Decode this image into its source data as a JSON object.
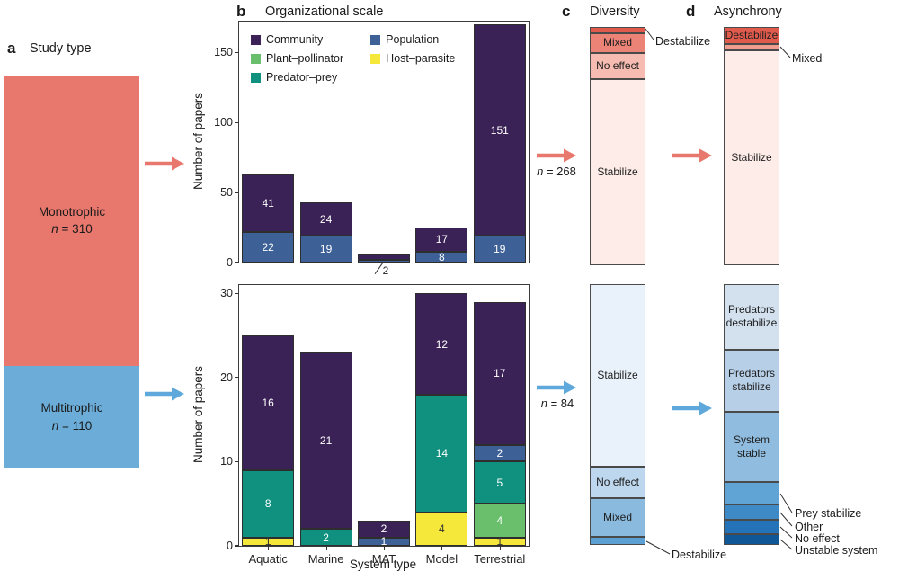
{
  "panel_a": {
    "letter": "a",
    "title": "Study type",
    "segments": [
      {
        "name": "Monotrophic",
        "n_sym": "n",
        "n_text": " = 310",
        "value": 310,
        "color": "#e8786d"
      },
      {
        "name": "Multitrophic",
        "n_sym": "n",
        "n_text": " = 110",
        "value": 110,
        "color": "#6badd8"
      }
    ]
  },
  "panel_b": {
    "letter": "b",
    "title": "Organizational scale",
    "ylabel": "Number of papers",
    "xlabel": "System type",
    "legend": [
      {
        "label": "Community",
        "color": "#3b2256"
      },
      {
        "label": "Plant–pollinator",
        "color": "#69bf6c"
      },
      {
        "label": "Predator–prey",
        "color": "#109180"
      },
      {
        "label": "Population",
        "color": "#3d6196"
      },
      {
        "label": "Host–parasite",
        "color": "#f5e83b"
      }
    ]
  },
  "panel_c": {
    "letter": "c",
    "title": "Diversity"
  },
  "panel_d": {
    "letter": "d",
    "title": "Asynchrony"
  },
  "arrows": {
    "red": "#e8786d",
    "blue": "#5ea8db"
  },
  "chart_data": [
    {
      "id": "organizational-scale-monotrophic",
      "type": "bar",
      "stacked": true,
      "categories": [
        "Aquatic",
        "Marine",
        "MAT",
        "Model",
        "Terrestrial"
      ],
      "ylabel": "Number of papers",
      "ylim": [
        0,
        172
      ],
      "yticks": [
        0,
        50,
        100,
        150
      ],
      "series": [
        {
          "name": "Population",
          "color": "#3d6196",
          "label_color": "#ffffff",
          "values": [
            22,
            19,
            2,
            8,
            19
          ],
          "labels": [
            "22",
            "19",
            "",
            "8",
            "19"
          ]
        },
        {
          "name": "Community",
          "color": "#3b2256",
          "label_color": "#ffffff",
          "values": [
            41,
            24,
            4,
            17,
            151
          ],
          "labels": [
            "41",
            "24",
            "",
            "17",
            "151"
          ]
        }
      ],
      "annotations": [
        {
          "text": "2",
          "category_index": 2,
          "position": "below-axis"
        }
      ]
    },
    {
      "id": "organizational-scale-multitrophic",
      "type": "bar",
      "stacked": true,
      "categories": [
        "Aquatic",
        "Marine",
        "MAT",
        "Model",
        "Terrestrial"
      ],
      "ylabel": "Number of papers",
      "xlabel": "System type",
      "ylim": [
        0,
        31
      ],
      "yticks": [
        0,
        10,
        20,
        30
      ],
      "show_x_tick_labels": true,
      "series": [
        {
          "name": "Host–parasite",
          "color": "#f5e83b",
          "label_color": "#333333",
          "values": [
            1,
            0,
            0,
            4,
            1
          ],
          "labels": [
            "1",
            "",
            "",
            "4",
            "1"
          ]
        },
        {
          "name": "Plant–pollinator",
          "color": "#69bf6c",
          "label_color": "#ffffff",
          "values": [
            0,
            0,
            0,
            0,
            4
          ],
          "labels": [
            "",
            "",
            "",
            "",
            "4"
          ]
        },
        {
          "name": "Predator–prey",
          "color": "#109180",
          "label_color": "#ffffff",
          "values": [
            8,
            2,
            0,
            14,
            5
          ],
          "labels": [
            "8",
            "2",
            "",
            "14",
            "5"
          ]
        },
        {
          "name": "Population",
          "color": "#3d6196",
          "label_color": "#ffffff",
          "values": [
            0,
            0,
            1,
            0,
            2
          ],
          "labels": [
            "",
            "",
            "1",
            "",
            "2"
          ]
        },
        {
          "name": "Community",
          "color": "#3b2256",
          "label_color": "#ffffff",
          "values": [
            16,
            21,
            2,
            12,
            17
          ],
          "labels": [
            "16",
            "21",
            "2",
            "12",
            "17"
          ]
        }
      ]
    },
    {
      "id": "diversity-monotrophic",
      "type": "stacked-column-percent",
      "n_sym": "n",
      "n_text": " = 268",
      "segments": [
        {
          "label": "Destabilize",
          "pct": 2.5,
          "color": "#e15b4d",
          "label_pos": "outside"
        },
        {
          "label": "Mixed",
          "pct": 8.5,
          "color": "#eb8377",
          "label_pos": "inside"
        },
        {
          "label": "No effect",
          "pct": 11,
          "color": "#f6bcb1",
          "label_pos": "inside"
        },
        {
          "label": "Stabilize",
          "pct": 78,
          "color": "#fdece7",
          "label_pos": "inside"
        }
      ]
    },
    {
      "id": "diversity-multitrophic",
      "type": "stacked-column-percent",
      "n_sym": "n",
      "n_text": " = 84",
      "segments": [
        {
          "label": "Stabilize",
          "pct": 70,
          "color": "#e9f1fa",
          "label_pos": "inside"
        },
        {
          "label": "No effect",
          "pct": 12,
          "color": "#bdd7ee",
          "label_pos": "inside"
        },
        {
          "label": "Mixed",
          "pct": 15,
          "color": "#8abade",
          "label_pos": "inside"
        },
        {
          "label": "Destabilize",
          "pct": 3,
          "color": "#5b9fd3",
          "label_pos": "outside"
        }
      ]
    },
    {
      "id": "asynchrony-monotrophic",
      "type": "stacked-column-percent",
      "segments": [
        {
          "label": "Destabilize",
          "pct": 7,
          "color": "#e15b4d",
          "label_pos": "inside"
        },
        {
          "label": "Mixed",
          "pct": 3,
          "color": "#f09c8f",
          "label_pos": "outside"
        },
        {
          "label": "Stabilize",
          "pct": 90,
          "color": "#fdece7",
          "label_pos": "inside"
        }
      ]
    },
    {
      "id": "asynchrony-multitrophic",
      "type": "stacked-column-percent",
      "segments": [
        {
          "label": "Predators destabilize",
          "pct": 25,
          "color": "#d3e1ef",
          "label_pos": "inside"
        },
        {
          "label": "Predators stabilize",
          "pct": 24,
          "color": "#b7d0e8",
          "label_pos": "inside"
        },
        {
          "label": "System stable",
          "pct": 27,
          "color": "#8fbcdf",
          "label_pos": "inside"
        },
        {
          "label": "Prey stabilize",
          "pct": 8.5,
          "color": "#60a3d5",
          "label_pos": "outside"
        },
        {
          "label": "Other",
          "pct": 6,
          "color": "#3e8ac7",
          "label_pos": "outside"
        },
        {
          "label": "No effect",
          "pct": 5.5,
          "color": "#2473b8",
          "label_pos": "outside"
        },
        {
          "label": "Unstable system",
          "pct": 4,
          "color": "#0f5796",
          "label_pos": "outside"
        }
      ]
    }
  ]
}
